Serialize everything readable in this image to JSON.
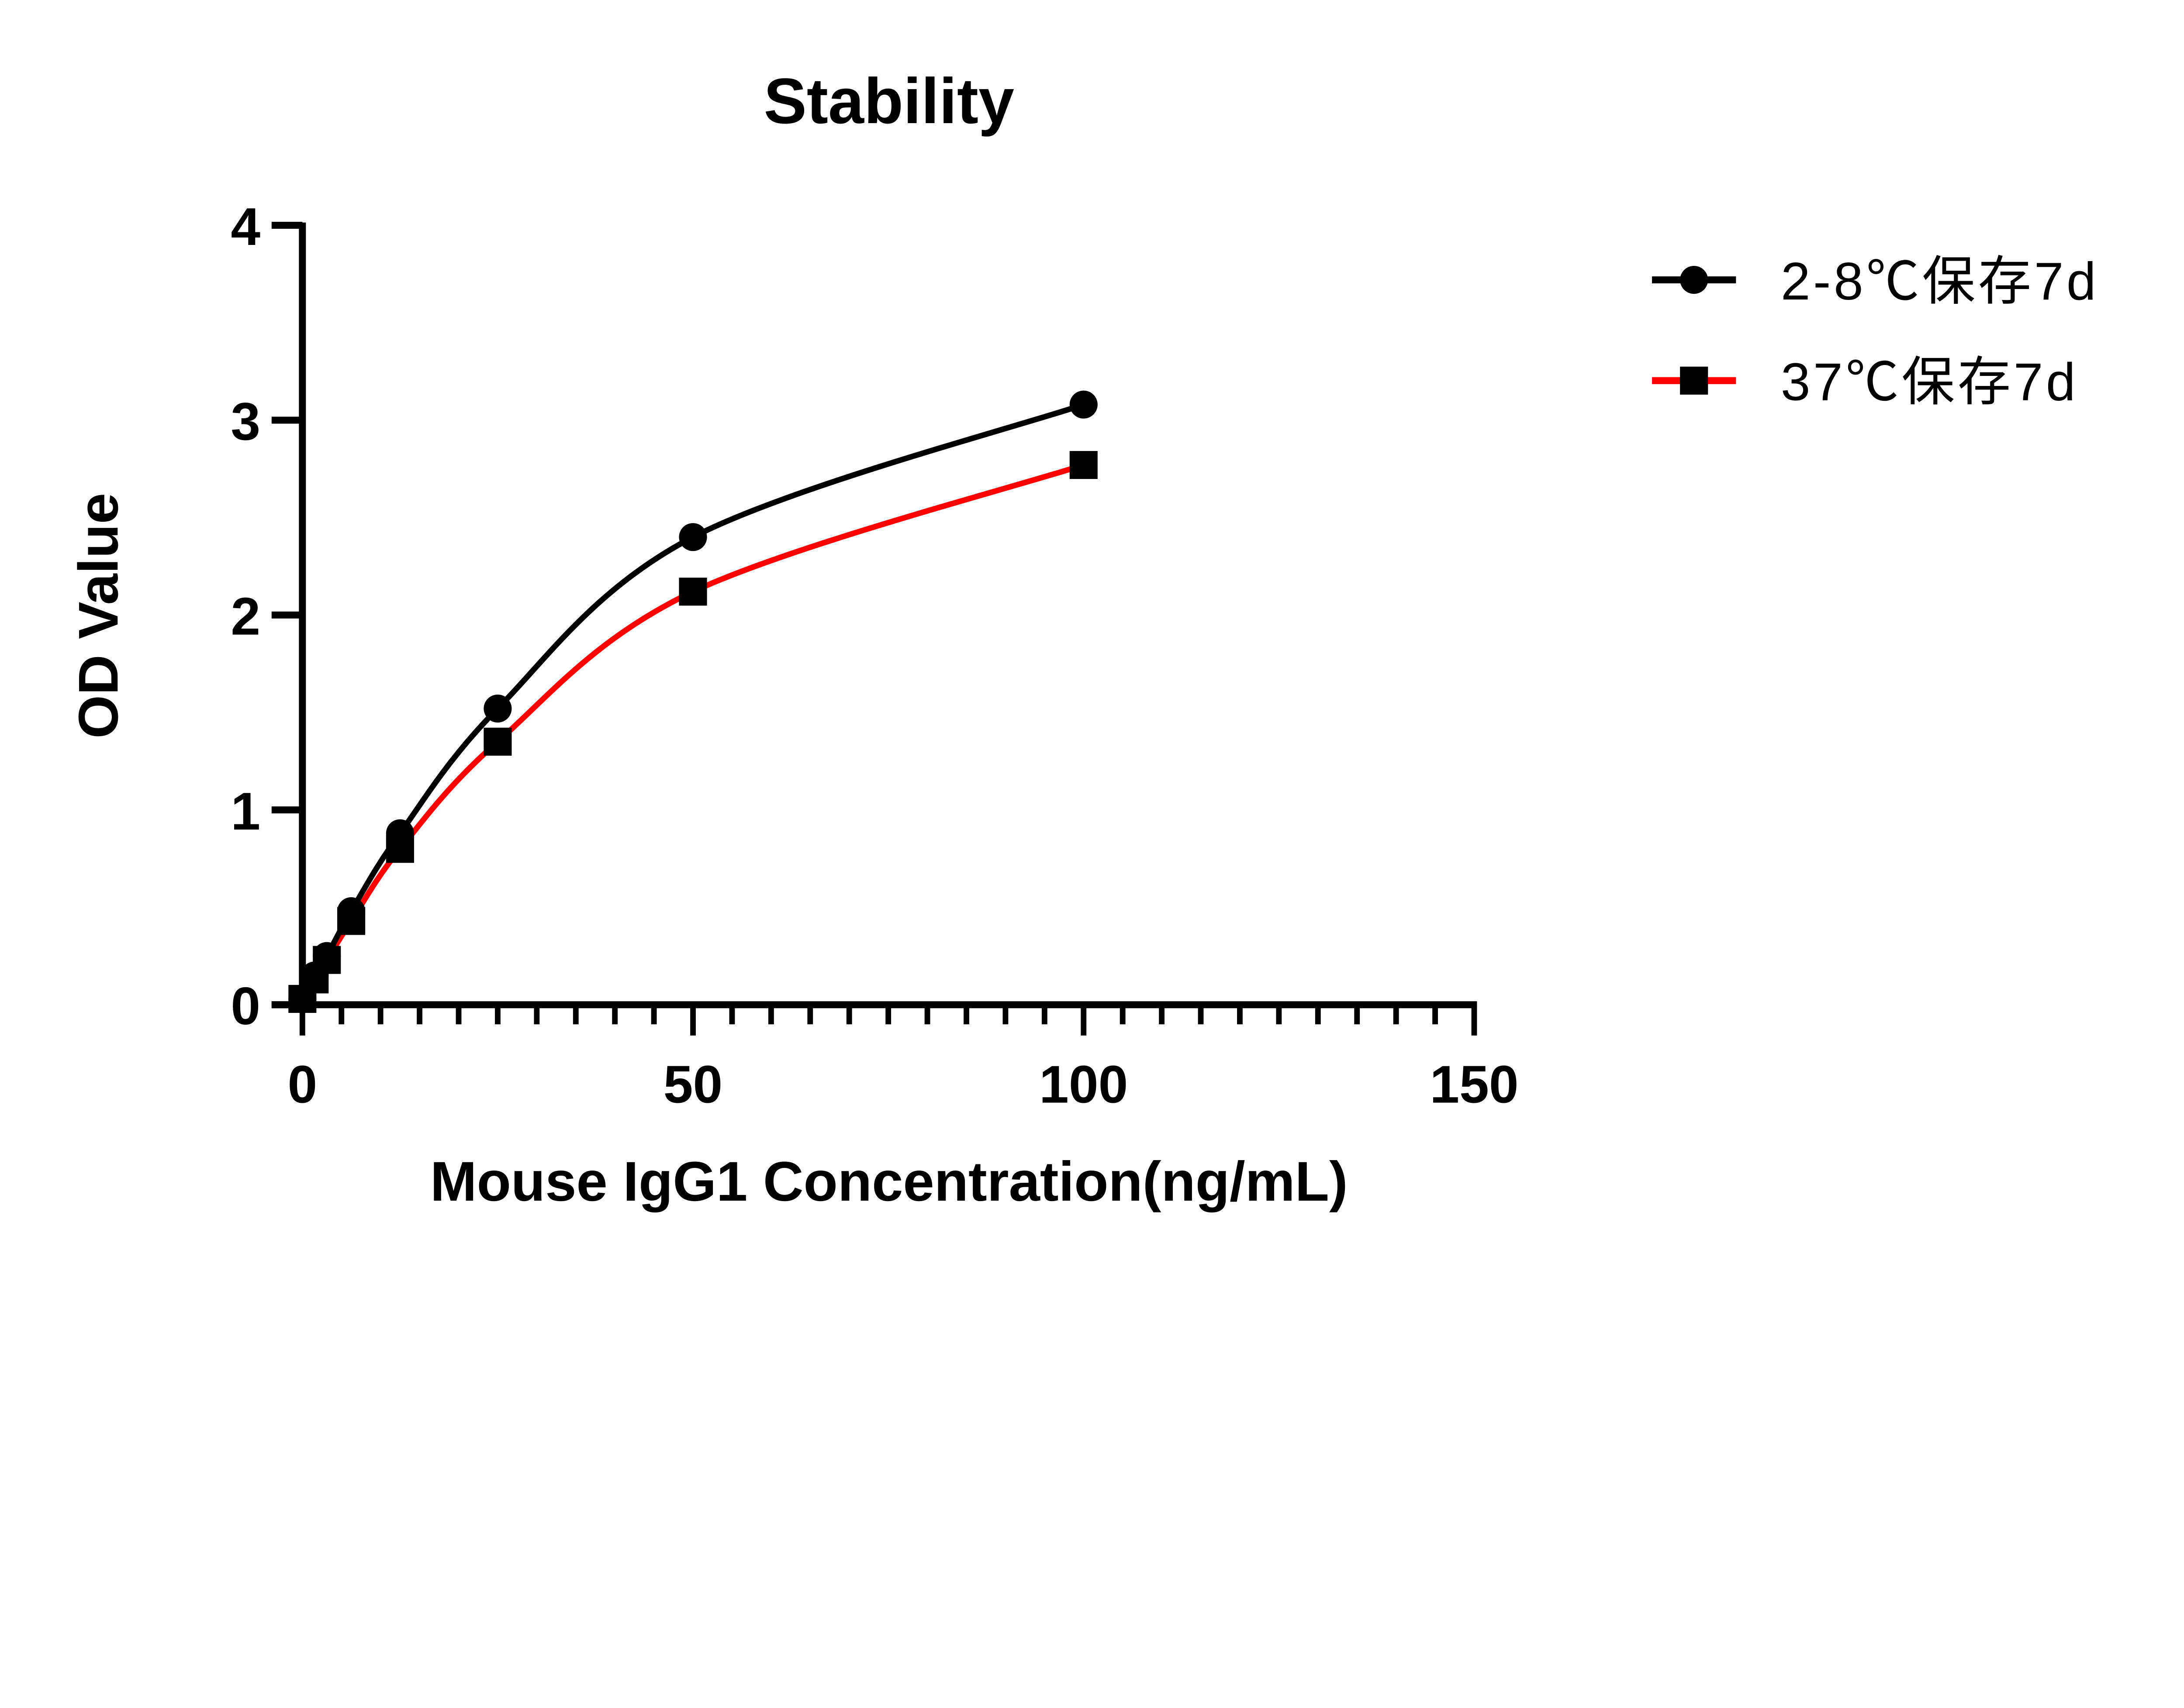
{
  "chart_data": {
    "type": "line",
    "title": "Stability",
    "xlabel": "Mouse IgG1 Concentration(ng/mL)",
    "ylabel": "OD Value",
    "xlim": [
      0,
      150
    ],
    "ylim": [
      0,
      4
    ],
    "x_ticks": [
      "0",
      "50",
      "100",
      "150"
    ],
    "y_ticks": [
      "0",
      "1",
      "2",
      "3",
      "4"
    ],
    "grid": false,
    "legend_position": "top-right",
    "x": [
      0,
      1.5625,
      3.125,
      6.25,
      12.5,
      25,
      50,
      100
    ],
    "series": [
      {
        "name": "2-8℃保存7d",
        "color": "#000000",
        "line_color": "#000000",
        "marker": "circle",
        "values": [
          0.03,
          0.15,
          0.25,
          0.48,
          0.88,
          1.52,
          2.4,
          3.08
        ]
      },
      {
        "name": "37℃保存7d",
        "color": "#000000",
        "line_color": "#ff0000",
        "marker": "square",
        "values": [
          0.03,
          0.13,
          0.23,
          0.43,
          0.8,
          1.35,
          2.12,
          2.77
        ]
      }
    ]
  }
}
